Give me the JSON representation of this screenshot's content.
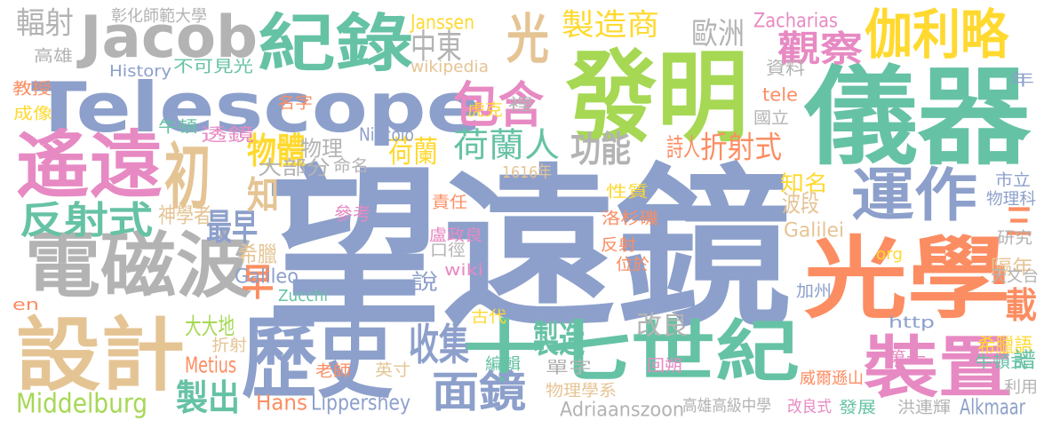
{
  "words": [
    {
      "text": "望遠鏡",
      "color": "#8da0cb"
    },
    {
      "text": "儀器",
      "color": "#66c2a5"
    },
    {
      "text": "發明",
      "color": "#a6d854"
    },
    {
      "text": "Telescope",
      "color": "#8da0cb"
    },
    {
      "text": "光學",
      "color": "#fc8d62"
    },
    {
      "text": "十七世紀",
      "color": "#66c2a5"
    },
    {
      "text": "歷史",
      "color": "#8da0cb"
    },
    {
      "text": "設計",
      "color": "#e5c494"
    },
    {
      "text": "電磁波",
      "color": "#b3b3b3"
    },
    {
      "text": "遙遠",
      "color": "#e78ac3"
    },
    {
      "text": "紀錄",
      "color": "#66c2a5"
    },
    {
      "text": "Jacob",
      "color": "#b3b3b3"
    },
    {
      "text": "裝置",
      "color": "#e78ac3"
    },
    {
      "text": "運作",
      "color": "#8da0cb"
    },
    {
      "text": "伽利略",
      "color": "#ffd92f"
    },
    {
      "text": "光",
      "color": "#e5c494"
    },
    {
      "text": "初",
      "color": "#e5c494"
    },
    {
      "text": "包含",
      "color": "#e78ac3"
    },
    {
      "text": "反射式",
      "color": "#66c2a5"
    },
    {
      "text": "面鏡",
      "color": "#8da0cb"
    },
    {
      "text": "觀察",
      "color": "#e78ac3"
    },
    {
      "text": "製造商",
      "color": "#ffd92f"
    },
    {
      "text": "荷蘭人",
      "color": "#66c2a5"
    },
    {
      "text": "輻射",
      "color": "#b3b3b3"
    },
    {
      "text": "物體",
      "color": "#ffd92f"
    },
    {
      "text": "功能",
      "color": "#b3b3b3"
    },
    {
      "text": "收集",
      "color": "#8da0cb"
    },
    {
      "text": "製出",
      "color": "#66c2a5"
    },
    {
      "text": "折射式",
      "color": "#fc8d62"
    },
    {
      "text": "荷蘭",
      "color": "#ffd92f"
    },
    {
      "text": "最早",
      "color": "#8da0cb"
    },
    {
      "text": "Middelburg",
      "color": "#a6d854"
    },
    {
      "text": "歐洲",
      "color": "#b3b3b3"
    },
    {
      "text": "中東",
      "color": "#b3b3b3"
    },
    {
      "text": "製造",
      "color": "#66c2a5"
    },
    {
      "text": "早",
      "color": "#fc8d62"
    },
    {
      "text": "知",
      "color": "#e5c494"
    },
    {
      "text": "載",
      "color": "#fc8d62"
    },
    {
      "text": "Lippershey",
      "color": "#8da0cb"
    },
    {
      "text": "Hans",
      "color": "#fc8d62"
    },
    {
      "text": "Alkmaar",
      "color": "#8da0cb"
    },
    {
      "text": "Adriaanszoon",
      "color": "#b3b3b3"
    },
    {
      "text": "Zacharias",
      "color": "#e78ac3"
    },
    {
      "text": "Janssen",
      "color": "#ffd92f"
    },
    {
      "text": "詩人",
      "color": "#fc8d62"
    },
    {
      "text": "知名",
      "color": "#ffd92f"
    },
    {
      "text": "波段",
      "color": "#e5c494"
    },
    {
      "text": "三",
      "color": "#fc8d62"
    },
    {
      "text": "物理",
      "color": "#b3b3b3"
    },
    {
      "text": "大部分",
      "color": "#b3b3b3"
    },
    {
      "text": "Galilei",
      "color": "#e5c494"
    },
    {
      "text": "Galileo",
      "color": "#8da0cb"
    },
    {
      "text": "神學者",
      "color": "#e5c494"
    },
    {
      "text": "希臘",
      "color": "#e5c494"
    },
    {
      "text": "參考",
      "color": "#e78ac3"
    },
    {
      "text": "大大地",
      "color": "#a6d854"
    },
    {
      "text": "Metius",
      "color": "#fc8d62"
    },
    {
      "text": "改良",
      "color": "#b3b3b3"
    },
    {
      "text": "希臘語",
      "color": "#ffd92f"
    },
    {
      "text": "隔年",
      "color": "#e5c494"
    },
    {
      "text": "說",
      "color": "#8da0cb"
    },
    {
      "text": "Niccolò",
      "color": "#8da0cb"
    },
    {
      "text": "http",
      "color": "#8da0cb"
    },
    {
      "text": "彰化師範大學",
      "color": "#b3b3b3"
    },
    {
      "text": "高雄",
      "color": "#b3b3b3"
    },
    {
      "text": "不可見光",
      "color": "#66c2a5"
    },
    {
      "text": "History",
      "color": "#8da0cb"
    },
    {
      "text": "wikipedia",
      "color": "#e5c494"
    },
    {
      "text": "虎克",
      "color": "#ffd92f"
    },
    {
      "text": "裡",
      "color": "#b3b3b3"
    },
    {
      "text": "資料",
      "color": "#b3b3b3"
    },
    {
      "text": "教授",
      "color": "#fc8d62"
    },
    {
      "text": "成像",
      "color": "#ffd92f"
    },
    {
      "text": "名字",
      "color": "#fc8d62"
    },
    {
      "text": "牛頓",
      "color": "#66c2a5"
    },
    {
      "text": "透鏡",
      "color": "#e78ac3"
    },
    {
      "text": "tele",
      "color": "#fc8d62"
    },
    {
      "text": "國立",
      "color": "#b3b3b3"
    },
    {
      "text": "年",
      "color": "#8da0cb"
    },
    {
      "text": "命名",
      "color": "#b3b3b3"
    },
    {
      "text": "1616年",
      "color": "#e5c494"
    },
    {
      "text": "性質",
      "color": "#ffd92f"
    },
    {
      "text": "責任",
      "color": "#fc8d62"
    },
    {
      "text": "洛杉磯",
      "color": "#fc8d62"
    },
    {
      "text": "盧政良",
      "color": "#e78ac3"
    },
    {
      "text": "口徑",
      "color": "#b3b3b3"
    },
    {
      "text": "反射",
      "color": "#fc8d62"
    },
    {
      "text": "位於",
      "color": "#fc8d62"
    },
    {
      "text": "wiki",
      "color": "#e78ac3"
    },
    {
      "text": "Zucchi",
      "color": "#66c2a5"
    },
    {
      "text": "市立",
      "color": "#8da0cb"
    },
    {
      "text": "物理科",
      "color": "#8da0cb"
    },
    {
      "text": "研究",
      "color": "#b3b3b3"
    },
    {
      "text": "天文台",
      "color": "#b3b3b3"
    },
    {
      "text": "org",
      "color": "#ffd92f"
    },
    {
      "text": "加州",
      "color": "#8da0cb"
    },
    {
      "text": "牛頓式",
      "color": "#66c2a5"
    },
    {
      "text": "譜",
      "color": "#66c2a5"
    },
    {
      "text": "利用",
      "color": "#b3b3b3"
    },
    {
      "text": "en",
      "color": "#fc8d62"
    },
    {
      "text": "折射",
      "color": "#e5c494"
    },
    {
      "text": "古代",
      "color": "#ffd92f"
    },
    {
      "text": "編輯",
      "color": "#66c2a5"
    },
    {
      "text": "老師",
      "color": "#fc8d62"
    },
    {
      "text": "英寸",
      "color": "#e5c494"
    },
    {
      "text": "物理學系",
      "color": "#e5c494"
    },
    {
      "text": "單字",
      "color": "#b3b3b3"
    },
    {
      "text": "回朔",
      "color": "#e78ac3"
    },
    {
      "text": "第一",
      "color": "#e78ac3"
    },
    {
      "text": "威爾遜山",
      "color": "#fc8d62"
    },
    {
      "text": "高雄高級中學",
      "color": "#b3b3b3"
    },
    {
      "text": "改良式",
      "color": "#e78ac3"
    },
    {
      "text": "發展",
      "color": "#66c2a5"
    },
    {
      "text": "洪連輝",
      "color": "#b3b3b3"
    }
  ]
}
